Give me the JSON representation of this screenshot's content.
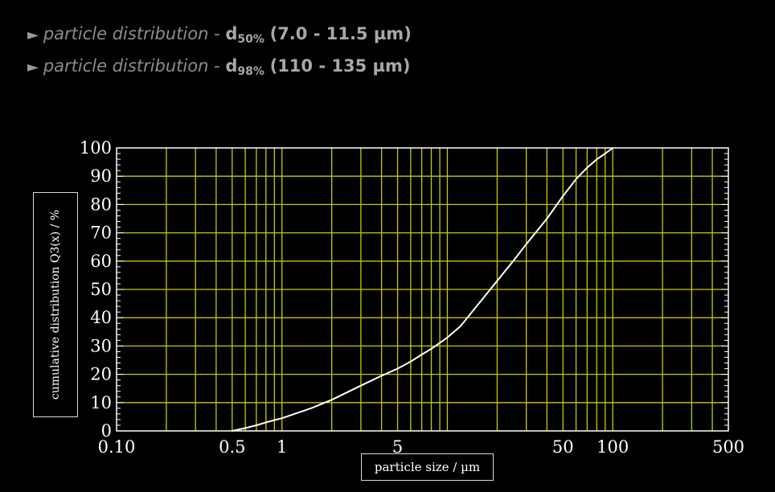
{
  "header": {
    "lines": [
      {
        "arrow": "►",
        "label": "particle distribution",
        "dash": " - ",
        "d": "d",
        "sub": "50%",
        "range": "(7.0 - 11.5 µm)"
      },
      {
        "arrow": "►",
        "label": "particle distribution",
        "dash": " - ",
        "d": "d",
        "sub": "98%",
        "range": "(110 - 135 µm)"
      }
    ]
  },
  "chart_data": {
    "type": "line",
    "x_scale": "log",
    "xlabel": "particle size / µm",
    "ylabel": "cumulative distribution Q3(x) / %",
    "xlim": [
      0.1,
      500
    ],
    "ylim": [
      0,
      100
    ],
    "x_tick_labels": [
      "0.10",
      "0.5",
      "1",
      "5",
      "50",
      "100",
      "500"
    ],
    "x_tick_values": [
      0.1,
      0.5,
      1,
      5,
      50,
      100,
      500
    ],
    "y_tick_labels": [
      "0",
      "10",
      "20",
      "30",
      "40",
      "50",
      "60",
      "70",
      "80",
      "90",
      "100"
    ],
    "y_tick_values": [
      0,
      10,
      20,
      30,
      40,
      50,
      60,
      70,
      80,
      90,
      100
    ],
    "x_gridlines": [
      0.2,
      0.3,
      0.4,
      0.5,
      0.6,
      0.7,
      0.8,
      0.9,
      1,
      2,
      3,
      4,
      5,
      6,
      7,
      8,
      9,
      10,
      20,
      30,
      40,
      50,
      60,
      70,
      80,
      90,
      100,
      200,
      300,
      400
    ],
    "grid": true,
    "colors": {
      "background": "#000000",
      "grid": "#c8c800",
      "axis": "#ffffff",
      "curve": "#ffffff"
    },
    "series": [
      {
        "x": [
          0.5,
          0.6,
          0.7,
          0.8,
          1.0,
          1.5,
          2.0,
          3.0,
          4.0,
          5.0,
          6.0,
          7.0,
          8.0,
          10.0,
          12.0,
          15.0,
          20.0,
          25.0,
          30.0,
          40.0,
          50.0,
          60.0,
          70.0,
          80.0,
          90.0,
          100.0
        ],
        "y": [
          0,
          1,
          2,
          3,
          4.5,
          8,
          11,
          16,
          19.5,
          22,
          24.5,
          27,
          29,
          33,
          37,
          44,
          53,
          60,
          66,
          75,
          83,
          89,
          93,
          96,
          98,
          100
        ]
      }
    ]
  }
}
